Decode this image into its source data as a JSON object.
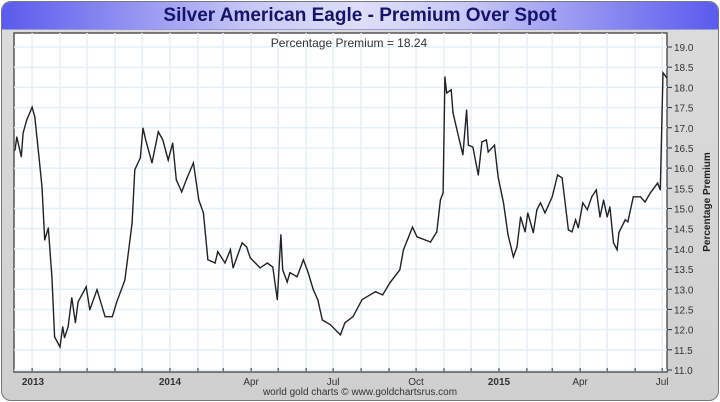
{
  "chart_data": {
    "type": "line",
    "title": "Silver American Eagle - Premium Over Spot",
    "annotation": "Percentage Premium = 18.24",
    "ylabel": "Percentage Premium",
    "ylim": [
      11.0,
      19.0
    ],
    "yticks": [
      "11.0",
      "11.5",
      "12.0",
      "12.5",
      "13.0",
      "13.5",
      "14.0",
      "14.5",
      "15.0",
      "15.5",
      "16.0",
      "16.5",
      "17.0",
      "17.5",
      "18.0",
      "18.5",
      "19.0"
    ],
    "xticks": [
      {
        "label": "2013",
        "date": "2013-07-13"
      },
      {
        "label": "2014",
        "date": "2014-01-01"
      },
      {
        "label": "Apr",
        "date": "2014-04-01"
      },
      {
        "label": "Jul",
        "date": "2014-07-01"
      },
      {
        "label": "Oct",
        "date": "2014-10-01"
      },
      {
        "label": "2015",
        "date": "2015-01-01"
      },
      {
        "label": "Apr",
        "date": "2015-04-01"
      },
      {
        "label": "Jul",
        "date": "2015-07-01"
      }
    ],
    "grid": true,
    "line_color": "#222222",
    "series": [
      {
        "x": [
          "2013-07-13",
          "2013-07-15",
          "2013-07-20",
          "2013-07-22",
          "2013-07-26",
          "2013-08-01",
          "2013-08-04",
          "2013-08-09",
          "2013-08-12",
          "2013-08-15",
          "2013-08-19",
          "2013-08-23",
          "2013-08-26",
          "2013-09-01",
          "2013-09-04",
          "2013-09-06",
          "2013-09-10",
          "2013-09-14",
          "2013-09-18",
          "2013-09-21",
          "2013-09-30",
          "2013-10-04",
          "2013-10-12",
          "2013-10-21",
          "2013-10-29",
          "2013-11-03",
          "2013-11-12",
          "2013-11-20",
          "2013-11-23",
          "2013-11-29",
          "2013-12-02",
          "2013-12-05",
          "2013-12-12",
          "2013-12-19",
          "2013-12-24",
          "2013-12-30",
          "2014-01-04",
          "2014-01-08",
          "2014-01-14",
          "2014-01-20",
          "2014-01-27",
          "2014-02-02",
          "2014-02-07",
          "2014-02-12",
          "2014-02-20",
          "2014-02-23",
          "2014-03-03",
          "2014-03-09",
          "2014-03-12",
          "2014-03-22",
          "2014-03-27",
          "2014-03-31",
          "2014-04-11",
          "2014-04-19",
          "2014-04-25",
          "2014-04-30",
          "2014-05-04",
          "2014-05-06",
          "2014-05-11",
          "2014-05-14",
          "2014-05-22",
          "2014-05-29",
          "2014-06-03",
          "2014-06-09",
          "2014-06-14",
          "2014-06-19",
          "2014-06-28",
          "2014-07-09",
          "2014-07-14",
          "2014-07-23",
          "2014-08-02",
          "2014-08-17",
          "2014-08-25",
          "2014-09-02",
          "2014-09-13",
          "2014-09-17",
          "2014-09-27",
          "2014-10-02",
          "2014-10-17",
          "2014-10-24",
          "2014-10-28",
          "2014-10-31",
          "2014-11-02",
          "2014-11-04",
          "2014-11-09",
          "2014-11-11",
          "2014-11-18",
          "2014-11-22",
          "2014-11-26",
          "2014-11-28",
          "2014-12-03",
          "2014-12-09",
          "2014-12-13",
          "2014-12-18",
          "2014-12-20",
          "2014-12-27",
          "2014-12-31",
          "2015-01-06",
          "2015-01-11",
          "2015-01-17",
          "2015-01-21",
          "2015-01-25",
          "2015-01-30",
          "2015-02-02",
          "2015-02-08",
          "2015-02-12",
          "2015-02-16",
          "2015-02-21",
          "2015-03-01",
          "2015-03-07",
          "2015-03-12",
          "2015-03-19",
          "2015-03-23",
          "2015-03-27",
          "2015-03-30",
          "2015-04-04",
          "2015-04-09",
          "2015-04-14",
          "2015-04-19",
          "2015-04-23",
          "2015-04-27",
          "2015-05-01",
          "2015-05-04",
          "2015-05-08",
          "2015-05-12",
          "2015-05-14",
          "2015-05-21",
          "2015-05-24",
          "2015-05-30",
          "2015-06-07",
          "2015-06-12",
          "2015-06-18",
          "2015-06-26",
          "2015-06-29",
          "2015-07-02",
          "2015-07-06"
        ],
        "y": [
          16.45,
          16.77,
          16.28,
          16.87,
          17.19,
          17.51,
          17.27,
          16.2,
          15.53,
          14.22,
          14.52,
          13.31,
          11.82,
          11.57,
          12.07,
          11.8,
          12.07,
          12.79,
          12.17,
          12.69,
          13.06,
          12.49,
          12.99,
          12.32,
          12.32,
          12.69,
          13.23,
          14.64,
          15.96,
          16.25,
          16.99,
          16.7,
          16.13,
          16.9,
          16.7,
          16.2,
          16.62,
          15.71,
          15.41,
          15.76,
          16.13,
          15.21,
          14.89,
          13.73,
          13.65,
          13.93,
          13.65,
          13.98,
          13.53,
          14.15,
          14.05,
          13.78,
          13.53,
          13.65,
          13.55,
          12.74,
          14.35,
          13.48,
          13.18,
          13.41,
          13.31,
          13.73,
          13.43,
          12.99,
          12.74,
          12.24,
          12.12,
          11.87,
          12.17,
          12.32,
          12.74,
          12.94,
          12.86,
          13.16,
          13.48,
          13.98,
          14.54,
          14.3,
          14.17,
          14.42,
          15.21,
          15.39,
          18.26,
          17.86,
          17.94,
          17.37,
          16.7,
          16.33,
          17.44,
          16.57,
          16.52,
          15.83,
          16.65,
          16.7,
          16.4,
          16.57,
          15.78,
          15.14,
          14.35,
          13.8,
          14.05,
          14.79,
          14.42,
          14.89,
          14.4,
          14.97,
          15.14,
          14.89,
          15.29,
          15.83,
          15.76,
          14.47,
          14.42,
          14.72,
          14.52,
          15.14,
          14.97,
          15.29,
          15.46,
          14.79,
          15.21,
          14.79,
          15.04,
          14.15,
          13.98,
          14.4,
          14.72,
          14.67,
          15.29,
          15.29,
          15.16,
          15.39,
          15.63,
          15.46,
          18.36,
          18.24
        ]
      }
    ],
    "footer": "world gold charts © www.goldchartsrus.com"
  }
}
